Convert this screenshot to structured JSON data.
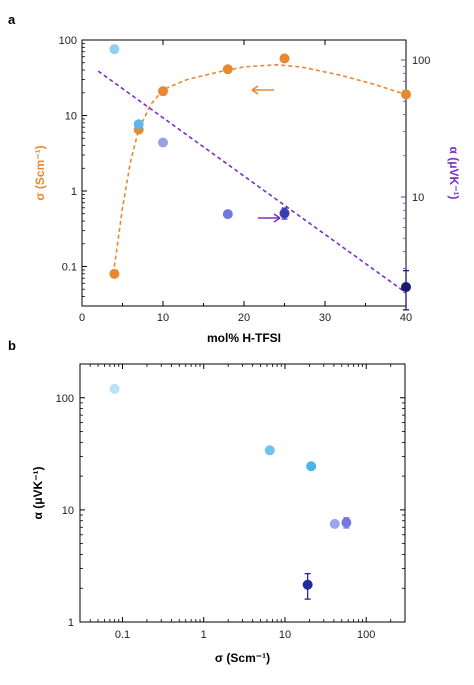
{
  "chart_data": [
    {
      "panel": "a",
      "type": "scatter",
      "xlabel": "mol% H-TFSI",
      "xlim": [
        0,
        40
      ],
      "x_ticks": [
        "0",
        "10",
        "20",
        "30",
        "40"
      ],
      "y_left": {
        "label": "σ (Scm⁻¹)",
        "scale": "log",
        "lim": [
          0.03,
          100
        ],
        "ticks": [
          "0.1",
          "1",
          "10",
          "100"
        ],
        "color": "#e8892f"
      },
      "y_right": {
        "label": "α (μVK⁻¹)",
        "scale": "log",
        "lim": [
          1.6,
          140
        ],
        "ticks": [
          "10",
          "100"
        ],
        "color": "#7b2fc8"
      },
      "series": [
        {
          "axis": "left",
          "color": "#e8892f",
          "x": [
            4,
            7,
            10,
            18,
            25,
            40
          ],
          "y": [
            0.08,
            6.5,
            21,
            41,
            57,
            19
          ],
          "fit": "dashed curve",
          "arrow": "left"
        },
        {
          "axis": "right",
          "colors": [
            "#8fd0f0",
            "#5cb8ec",
            "#9b9fe8",
            "#6e78e0",
            "#3c3cb2",
            "#1a1a6e"
          ],
          "x": [
            4,
            7,
            10,
            18,
            25,
            40
          ],
          "y": [
            120,
            34,
            25,
            7.5,
            7.6,
            2.2
          ],
          "y_err": [
            0,
            0,
            0,
            0,
            0.7,
            0.7
          ],
          "fit": "dashed line",
          "arrow": "right"
        }
      ]
    },
    {
      "panel": "b",
      "type": "scatter",
      "xlabel": "σ (Scm⁻¹)",
      "ylabel": "α (μVK⁻¹)",
      "x_scale": "log",
      "y_scale": "log",
      "xlim": [
        0.03,
        300
      ],
      "ylim": [
        1,
        200
      ],
      "x_ticks": [
        "0.1",
        "1",
        "10",
        "100"
      ],
      "y_ticks": [
        "1",
        "10",
        "100"
      ],
      "points": [
        {
          "x": 0.08,
          "y": 120,
          "color": "#b8e2f7"
        },
        {
          "x": 6.5,
          "y": 34,
          "color": "#6cc4ef"
        },
        {
          "x": 21,
          "y": 24.5,
          "color": "#4fb3ea"
        },
        {
          "x": 41,
          "y": 7.5,
          "color": "#a0a4ea"
        },
        {
          "x": 57,
          "y": 7.7,
          "color": "#7378de",
          "err": 0.8
        },
        {
          "x": 19,
          "y": 2.15,
          "color": "#1f2b9a",
          "err": 0.55
        }
      ]
    }
  ]
}
